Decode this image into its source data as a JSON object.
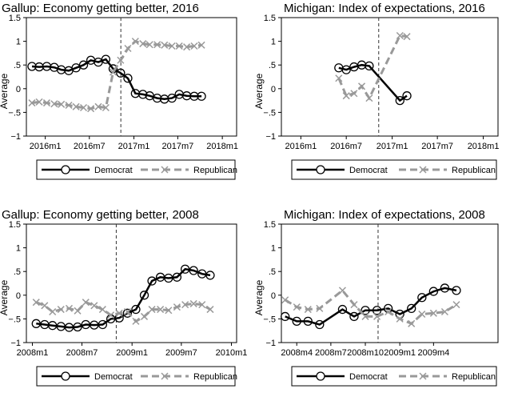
{
  "chart_data": [
    {
      "type": "line",
      "title": "Gallup: Economy getting better, 2016",
      "ylabel": "Average",
      "xlabel": "",
      "ylim": [
        -1,
        1.5
      ],
      "yticks": [
        -1,
        -0.5,
        0,
        0.5,
        1,
        1.5
      ],
      "ytick_labels": [
        "−1",
        "−.5",
        "0",
        ".5",
        "1",
        "1.5"
      ],
      "x_axis": {
        "start": "2015-10-15",
        "end": "2018-03-01"
      },
      "xticks": [
        {
          "date": "2016-01-01",
          "label": "2016m1"
        },
        {
          "date": "2016-07-01",
          "label": "2016m7"
        },
        {
          "date": "2017-01-01",
          "label": "2017m1"
        },
        {
          "date": "2017-07-01",
          "label": "2017m7"
        },
        {
          "date": "2018-01-01",
          "label": "2018m1"
        }
      ],
      "vline": "2016-11-08",
      "grid": false,
      "legend_position": "bottom",
      "series": [
        {
          "name": "Democrat",
          "style": "solid-circle",
          "color": "#000000",
          "points": [
            [
              "2015-11-07",
              0.47
            ],
            [
              "2015-12-07",
              0.46
            ],
            [
              "2016-01-07",
              0.47
            ],
            [
              "2016-02-07",
              0.45
            ],
            [
              "2016-03-07",
              0.4
            ],
            [
              "2016-04-07",
              0.38
            ],
            [
              "2016-05-07",
              0.44
            ],
            [
              "2016-06-07",
              0.5
            ],
            [
              "2016-07-07",
              0.6
            ],
            [
              "2016-08-07",
              0.56
            ],
            [
              "2016-09-07",
              0.62
            ],
            [
              "2016-10-07",
              0.42
            ],
            [
              "2016-11-07",
              0.33
            ],
            [
              "2016-12-07",
              0.22
            ],
            [
              "2017-01-07",
              -0.1
            ],
            [
              "2017-02-07",
              -0.12
            ],
            [
              "2017-03-07",
              -0.15
            ],
            [
              "2017-04-07",
              -0.2
            ],
            [
              "2017-05-07",
              -0.22
            ],
            [
              "2017-06-07",
              -0.2
            ],
            [
              "2017-07-07",
              -0.12
            ],
            [
              "2017-08-07",
              -0.15
            ],
            [
              "2017-09-07",
              -0.16
            ],
            [
              "2017-10-07",
              -0.16
            ]
          ]
        },
        {
          "name": "Republican",
          "style": "dash-x",
          "color": "#999999",
          "points": [
            [
              "2015-11-07",
              -0.3
            ],
            [
              "2015-12-07",
              -0.28
            ],
            [
              "2016-01-07",
              -0.3
            ],
            [
              "2016-02-07",
              -0.32
            ],
            [
              "2016-03-07",
              -0.33
            ],
            [
              "2016-04-07",
              -0.35
            ],
            [
              "2016-05-07",
              -0.38
            ],
            [
              "2016-06-07",
              -0.4
            ],
            [
              "2016-07-07",
              -0.42
            ],
            [
              "2016-08-07",
              -0.38
            ],
            [
              "2016-09-07",
              -0.4
            ],
            [
              "2016-10-07",
              0.35
            ],
            [
              "2016-11-07",
              0.6
            ],
            [
              "2016-12-07",
              0.85
            ],
            [
              "2017-01-07",
              1.0
            ],
            [
              "2017-02-07",
              0.95
            ],
            [
              "2017-03-07",
              0.93
            ],
            [
              "2017-04-07",
              0.93
            ],
            [
              "2017-05-07",
              0.92
            ],
            [
              "2017-06-07",
              0.9
            ],
            [
              "2017-07-07",
              0.9
            ],
            [
              "2017-08-07",
              0.88
            ],
            [
              "2017-09-07",
              0.9
            ],
            [
              "2017-10-07",
              0.92
            ]
          ]
        }
      ]
    },
    {
      "type": "line",
      "title": "Michigan: Index of expectations, 2016",
      "ylabel": "Average",
      "xlabel": "",
      "ylim": [
        -1,
        1.5
      ],
      "yticks": [
        -1,
        -0.5,
        0,
        0.5,
        1,
        1.5
      ],
      "ytick_labels": [
        "−1",
        "−.5",
        "0",
        ".5",
        "1",
        "1.5"
      ],
      "x_axis": {
        "start": "2015-10-15",
        "end": "2018-03-01"
      },
      "xticks": [
        {
          "date": "2016-01-01",
          "label": "2016m1"
        },
        {
          "date": "2016-07-01",
          "label": "2016m7"
        },
        {
          "date": "2017-01-01",
          "label": "2017m1"
        },
        {
          "date": "2017-07-01",
          "label": "2017m7"
        },
        {
          "date": "2018-01-01",
          "label": "2018m1"
        }
      ],
      "vline": "2016-11-08",
      "grid": false,
      "legend_position": "bottom",
      "series": [
        {
          "name": "Democrat",
          "style": "solid-circle",
          "color": "#000000",
          "points": [
            [
              "2016-06-01",
              0.44
            ],
            [
              "2016-07-01",
              0.4
            ],
            [
              "2016-08-01",
              0.46
            ],
            [
              "2016-09-01",
              0.5
            ],
            [
              "2016-10-01",
              0.48
            ],
            [
              "2017-02-01",
              -0.25
            ],
            [
              "2017-03-01",
              -0.15
            ]
          ]
        },
        {
          "name": "Republican",
          "style": "dash-x",
          "color": "#999999",
          "points": [
            [
              "2016-06-01",
              0.22
            ],
            [
              "2016-07-01",
              -0.15
            ],
            [
              "2016-08-01",
              -0.1
            ],
            [
              "2016-09-01",
              0.05
            ],
            [
              "2016-10-01",
              -0.2
            ],
            [
              "2017-02-01",
              1.12
            ],
            [
              "2017-03-01",
              1.1
            ]
          ]
        }
      ]
    },
    {
      "type": "line",
      "title": "Gallup: Economy getting better, 2008",
      "ylabel": "Average",
      "xlabel": "",
      "ylim": [
        -1,
        1.5
      ],
      "yticks": [
        -1,
        -0.5,
        0,
        0.5,
        1,
        1.5
      ],
      "ytick_labels": [
        "−1",
        "−.5",
        "0",
        ".5",
        "1",
        "1.5"
      ],
      "x_axis": {
        "start": "2007-12-10",
        "end": "2010-01-20"
      },
      "xticks": [
        {
          "date": "2008-01-01",
          "label": "2008m1"
        },
        {
          "date": "2008-07-01",
          "label": "2008m7"
        },
        {
          "date": "2009-01-01",
          "label": "2009m1"
        },
        {
          "date": "2009-07-01",
          "label": "2009m7"
        },
        {
          "date": "2010-01-01",
          "label": "2010m1"
        }
      ],
      "vline": "2008-11-04",
      "grid": false,
      "legend_position": "bottom",
      "series": [
        {
          "name": "Democrat",
          "style": "solid-circle",
          "color": "#000000",
          "points": [
            [
              "2008-01-15",
              -0.6
            ],
            [
              "2008-02-15",
              -0.62
            ],
            [
              "2008-03-15",
              -0.64
            ],
            [
              "2008-04-15",
              -0.66
            ],
            [
              "2008-05-15",
              -0.68
            ],
            [
              "2008-06-15",
              -0.67
            ],
            [
              "2008-07-15",
              -0.62
            ],
            [
              "2008-08-15",
              -0.63
            ],
            [
              "2008-09-15",
              -0.62
            ],
            [
              "2008-10-15",
              -0.5
            ],
            [
              "2008-11-15",
              -0.48
            ],
            [
              "2008-12-15",
              -0.38
            ],
            [
              "2009-01-15",
              -0.3
            ],
            [
              "2009-02-15",
              0.0
            ],
            [
              "2009-03-15",
              0.3
            ],
            [
              "2009-04-15",
              0.38
            ],
            [
              "2009-05-15",
              0.36
            ],
            [
              "2009-06-15",
              0.38
            ],
            [
              "2009-07-15",
              0.55
            ],
            [
              "2009-08-15",
              0.52
            ],
            [
              "2009-09-15",
              0.45
            ],
            [
              "2009-10-15",
              0.42
            ]
          ]
        },
        {
          "name": "Republican",
          "style": "dash-x",
          "color": "#999999",
          "points": [
            [
              "2008-01-15",
              -0.15
            ],
            [
              "2008-02-15",
              -0.22
            ],
            [
              "2008-03-15",
              -0.35
            ],
            [
              "2008-04-15",
              -0.3
            ],
            [
              "2008-05-15",
              -0.28
            ],
            [
              "2008-06-15",
              -0.33
            ],
            [
              "2008-07-15",
              -0.15
            ],
            [
              "2008-08-15",
              -0.22
            ],
            [
              "2008-09-15",
              -0.3
            ],
            [
              "2008-10-15",
              -0.42
            ],
            [
              "2008-11-15",
              -0.38
            ],
            [
              "2008-12-15",
              -0.35
            ],
            [
              "2009-01-15",
              -0.55
            ],
            [
              "2009-02-15",
              -0.45
            ],
            [
              "2009-03-15",
              -0.3
            ],
            [
              "2009-04-15",
              -0.3
            ],
            [
              "2009-05-15",
              -0.32
            ],
            [
              "2009-06-15",
              -0.25
            ],
            [
              "2009-07-15",
              -0.2
            ],
            [
              "2009-08-15",
              -0.18
            ],
            [
              "2009-09-15",
              -0.2
            ],
            [
              "2009-10-15",
              -0.3
            ]
          ]
        }
      ]
    },
    {
      "type": "line",
      "title": "Michigan: Index of expectations, 2008",
      "ylabel": "Average",
      "xlabel": "",
      "ylim": [
        -1,
        1.5
      ],
      "yticks": [
        -1,
        -0.5,
        0,
        0.5,
        1,
        1.5
      ],
      "ytick_labels": [
        "−1",
        "−.5",
        "0",
        ".5",
        "1",
        "1.5"
      ],
      "x_axis": {
        "start": "2008-02-20",
        "end": "2009-09-20"
      },
      "xticks": [
        {
          "date": "2008-04-01",
          "label": "2008m4"
        },
        {
          "date": "2008-07-01",
          "label": "2008m7"
        },
        {
          "date": "2008-10-01",
          "label": "2008m10"
        },
        {
          "date": "2009-01-01",
          "label": "2009m1"
        },
        {
          "date": "2009-04-01",
          "label": "2009m4"
        }
      ],
      "vline": "2008-11-04",
      "grid": false,
      "legend_position": "bottom",
      "series": [
        {
          "name": "Democrat",
          "style": "solid-circle",
          "color": "#000000",
          "points": [
            [
              "2008-03-01",
              -0.45
            ],
            [
              "2008-04-01",
              -0.55
            ],
            [
              "2008-05-01",
              -0.55
            ],
            [
              "2008-06-01",
              -0.62
            ],
            [
              "2008-08-01",
              -0.3
            ],
            [
              "2008-09-01",
              -0.45
            ],
            [
              "2008-10-01",
              -0.32
            ],
            [
              "2008-11-01",
              -0.32
            ],
            [
              "2008-12-01",
              -0.28
            ],
            [
              "2009-01-01",
              -0.4
            ],
            [
              "2009-02-01",
              -0.28
            ],
            [
              "2009-03-01",
              -0.05
            ],
            [
              "2009-04-01",
              0.08
            ],
            [
              "2009-05-01",
              0.15
            ],
            [
              "2009-06-01",
              0.1
            ]
          ]
        },
        {
          "name": "Republican",
          "style": "dash-x",
          "color": "#999999",
          "points": [
            [
              "2008-03-01",
              -0.1
            ],
            [
              "2008-04-01",
              -0.25
            ],
            [
              "2008-05-01",
              -0.3
            ],
            [
              "2008-06-01",
              -0.28
            ],
            [
              "2008-08-01",
              0.1
            ],
            [
              "2008-09-01",
              -0.2
            ],
            [
              "2008-10-01",
              -0.45
            ],
            [
              "2008-11-01",
              -0.45
            ],
            [
              "2008-12-01",
              -0.35
            ],
            [
              "2009-01-01",
              -0.5
            ],
            [
              "2009-02-01",
              -0.6
            ],
            [
              "2009-03-01",
              -0.4
            ],
            [
              "2009-04-01",
              -0.38
            ],
            [
              "2009-05-01",
              -0.35
            ],
            [
              "2009-06-01",
              -0.2
            ]
          ]
        }
      ]
    }
  ]
}
